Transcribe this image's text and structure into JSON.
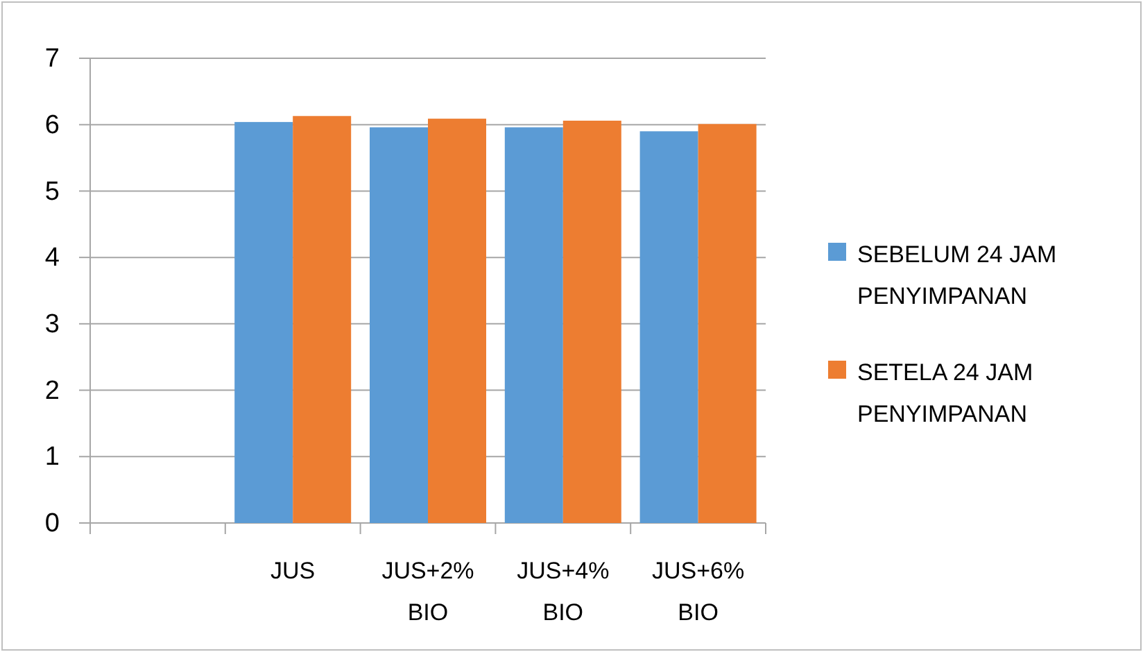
{
  "chart_data": {
    "type": "bar",
    "categories": [
      null,
      "JUS",
      "JUS+2% BIO",
      "JUS+4% BIO",
      "JUS+6% BIO"
    ],
    "series": [
      {
        "name": "SEBELUM 24 JAM PENYIMPANAN",
        "color": "#5b9bd5",
        "values": [
          null,
          6.04,
          5.96,
          5.96,
          5.9
        ]
      },
      {
        "name": "SETELA 24 JAM PENYIMPANAN",
        "color": "#ed7d31",
        "values": [
          null,
          6.13,
          6.09,
          6.06,
          6.01
        ]
      }
    ],
    "ylim": [
      0,
      7
    ],
    "yticks": [
      0,
      1,
      2,
      3,
      4,
      5,
      6,
      7
    ],
    "grid": "y",
    "legend": "right"
  }
}
